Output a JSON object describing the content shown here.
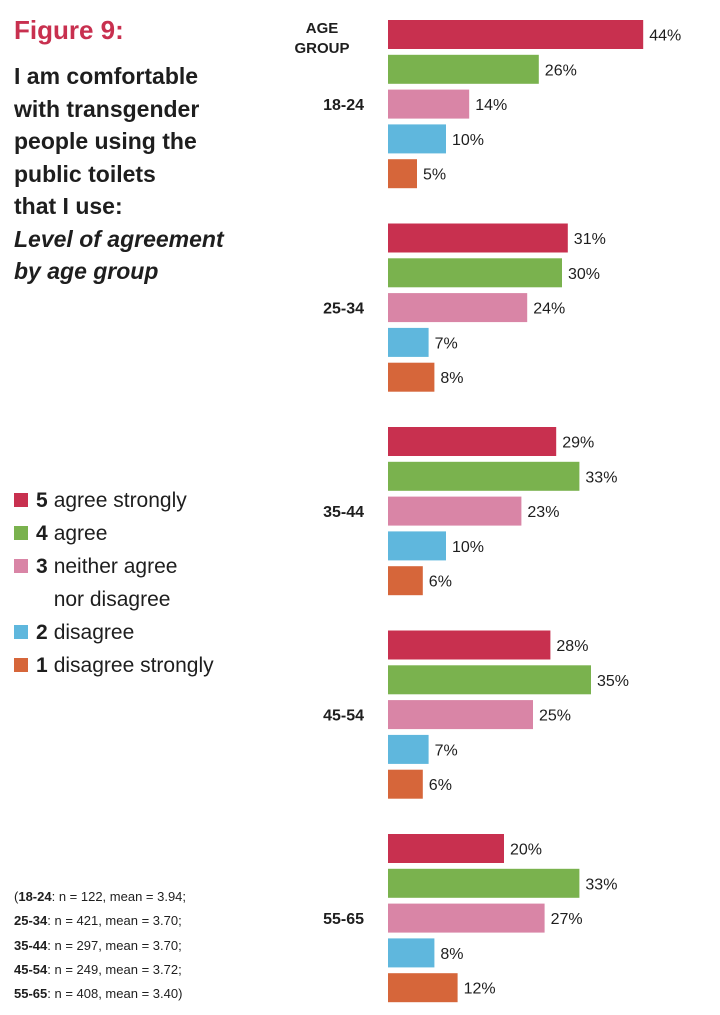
{
  "figure_label": "Figure 9:",
  "title_lines": [
    "I am comfortable",
    "with transgender",
    "people using the",
    "public toilets",
    "that I use:"
  ],
  "subtitle_lines": [
    "Level of agreement",
    "by age group"
  ],
  "legend": [
    {
      "level": "5",
      "label": "agree strongly",
      "color": "#c8304f"
    },
    {
      "level": "4",
      "label": "agree",
      "color": "#7ab24e"
    },
    {
      "level": "3",
      "label": "neither agree\nnor disagree",
      "color": "#d985a6"
    },
    {
      "level": "2",
      "label": "disagree",
      "color": "#5fb7dd"
    },
    {
      "level": "1",
      "label": "disagree strongly",
      "color": "#d6663a"
    }
  ],
  "notes": [
    {
      "prefix": "(",
      "group": "18-24",
      "text": ": n = 122, mean = 3.94;"
    },
    {
      "prefix": "",
      "group": "25-34",
      "text": ": n = 421, mean = 3.70;"
    },
    {
      "prefix": "",
      "group": "35-44",
      "text": ": n = 297, mean = 3.70;"
    },
    {
      "prefix": "",
      "group": "45-54",
      "text": ": n = 249, mean = 3.72;"
    },
    {
      "prefix": "",
      "group": "55-65",
      "text": ": n = 408, mean = 3.40)"
    }
  ],
  "chart_data": {
    "type": "bar",
    "orientation": "horizontal",
    "title": "I am comfortable with transgender people using the public toilets that I use: Level of agreement by age group",
    "axis_label": "AGE\nGROUP",
    "categories": [
      "18-24",
      "25-34",
      "35-44",
      "45-54",
      "55-65"
    ],
    "value_suffix": "%",
    "xlim": [
      0,
      44
    ],
    "series": [
      {
        "name": "5 agree strongly",
        "color": "#c8304f",
        "values": [
          44,
          31,
          29,
          28,
          20
        ]
      },
      {
        "name": "4 agree",
        "color": "#7ab24e",
        "values": [
          26,
          30,
          33,
          35,
          33
        ]
      },
      {
        "name": "3 neither agree nor disagree",
        "color": "#d985a6",
        "values": [
          14,
          24,
          23,
          25,
          27
        ]
      },
      {
        "name": "2 disagree",
        "color": "#5fb7dd",
        "values": [
          10,
          7,
          10,
          7,
          8
        ]
      },
      {
        "name": "1 disagree strongly",
        "color": "#d6663a",
        "values": [
          5,
          8,
          6,
          6,
          12
        ]
      }
    ]
  }
}
